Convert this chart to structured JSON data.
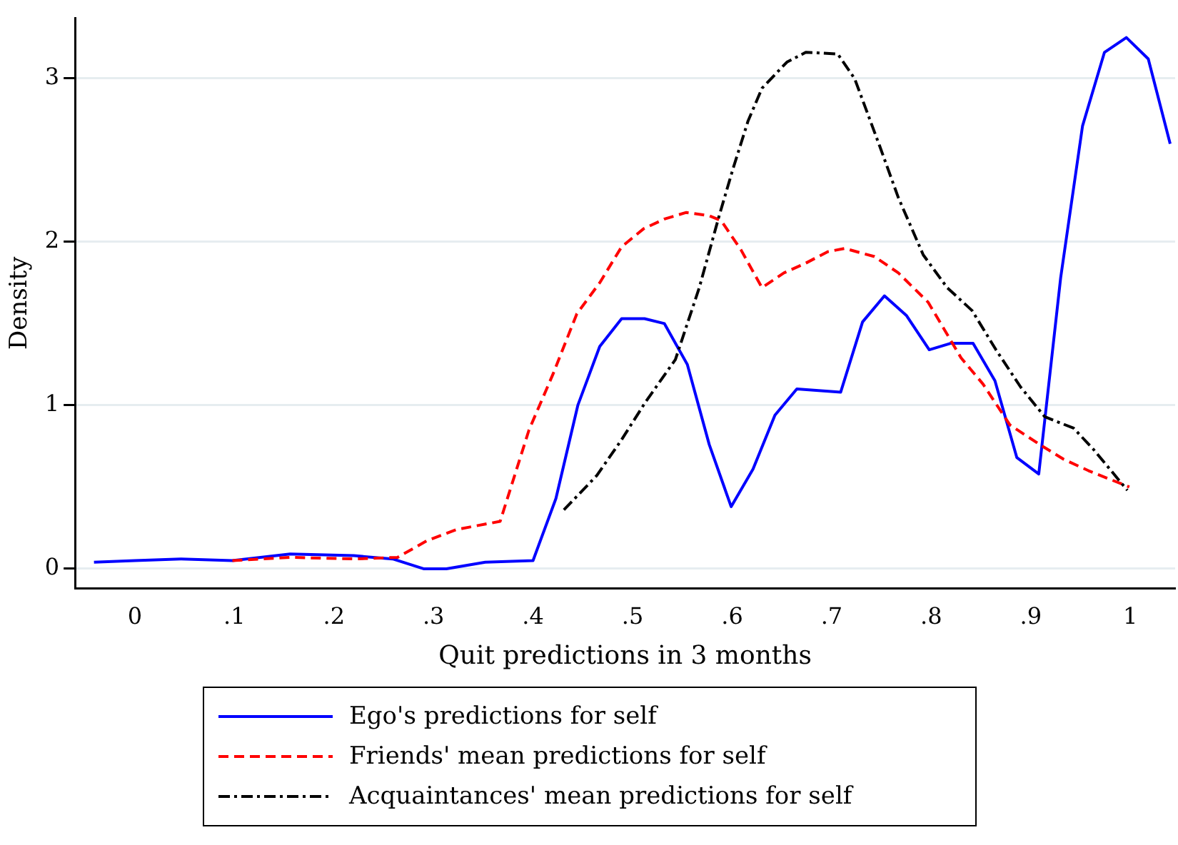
{
  "chart_data": {
    "type": "line",
    "xlabel": "Quit predictions in 3 months",
    "ylabel": "Density",
    "xlim": [
      -0.06,
      1.045
    ],
    "ylim": [
      -0.12,
      3.37
    ],
    "xticks": [
      0,
      {
        "value": 0.1,
        "label": ".1"
      },
      {
        "value": 0.2,
        "label": ".2"
      },
      {
        "value": 0.3,
        "label": ".3"
      },
      {
        "value": 0.4,
        "label": ".4"
      },
      {
        "value": 0.5,
        "label": ".5"
      },
      {
        "value": 0.6,
        "label": ".6"
      },
      {
        "value": 0.7,
        "label": ".7"
      },
      {
        "value": 0.8,
        "label": ".8"
      },
      {
        "value": 0.9,
        "label": ".9"
      },
      1
    ],
    "yticks": [
      0,
      1,
      2,
      3
    ],
    "grid": "y",
    "legend": "bottom",
    "marker": "none",
    "series": [
      {
        "name": "Ego's predictions for self",
        "color": "#0000ff",
        "line_style": "solid",
        "x": [
          -0.041,
          0,
          0.046,
          0.098,
          0.156,
          0.22,
          0.259,
          0.29,
          0.313,
          0.352,
          0.4,
          0.423,
          0.445,
          0.467,
          0.489,
          0.512,
          0.532,
          0.555,
          0.577,
          0.599,
          0.621,
          0.643,
          0.665,
          0.687,
          0.709,
          0.731,
          0.753,
          0.775,
          0.798,
          0.82,
          0.842,
          0.864,
          0.886,
          0.908,
          0.93,
          0.952,
          0.974,
          0.996,
          1.018,
          1.04
        ],
        "values": [
          0.04,
          0.05,
          0.06,
          0.05,
          0.09,
          0.08,
          0.06,
          0.0,
          0.0,
          0.04,
          0.05,
          0.43,
          1.0,
          1.36,
          1.53,
          1.53,
          1.5,
          1.25,
          0.76,
          0.38,
          0.61,
          0.94,
          1.1,
          1.09,
          1.08,
          1.51,
          1.67,
          1.55,
          1.34,
          1.38,
          1.38,
          1.15,
          0.68,
          0.58,
          1.78,
          2.71,
          3.16,
          3.25,
          3.12,
          2.6
        ]
      },
      {
        "name": "Friends' mean predictions for self",
        "color": "#ff0000",
        "line_style": "dashed",
        "x": [
          0.098,
          0.156,
          0.22,
          0.264,
          0.293,
          0.323,
          0.367,
          0.396,
          0.42,
          0.444,
          0.467,
          0.489,
          0.511,
          0.532,
          0.554,
          0.577,
          0.589,
          0.609,
          0.63,
          0.652,
          0.674,
          0.696,
          0.713,
          0.743,
          0.767,
          0.797,
          0.83,
          0.852,
          0.879,
          0.909,
          0.933,
          0.958,
          0.999
        ],
        "values": [
          0.05,
          0.07,
          0.06,
          0.07,
          0.17,
          0.24,
          0.29,
          0.85,
          1.19,
          1.56,
          1.75,
          1.97,
          2.08,
          2.14,
          2.18,
          2.16,
          2.13,
          1.95,
          1.72,
          1.81,
          1.87,
          1.94,
          1.96,
          1.91,
          1.81,
          1.63,
          1.29,
          1.13,
          0.88,
          0.76,
          0.67,
          0.6,
          0.5
        ]
      },
      {
        "name": "Acquaintances' mean predictions for self",
        "color": "#000000",
        "line_style": "dashdot",
        "x": [
          0.431,
          0.464,
          0.489,
          0.513,
          0.543,
          0.567,
          0.587,
          0.601,
          0.616,
          0.63,
          0.655,
          0.674,
          0.706,
          0.723,
          0.748,
          0.767,
          0.792,
          0.816,
          0.841,
          0.865,
          0.89,
          0.914,
          0.943,
          0.963,
          0.997
        ],
        "values": [
          0.36,
          0.57,
          0.79,
          1.02,
          1.28,
          1.72,
          2.16,
          2.45,
          2.74,
          2.94,
          3.1,
          3.16,
          3.15,
          3.0,
          2.59,
          2.27,
          1.92,
          1.72,
          1.58,
          1.34,
          1.11,
          0.93,
          0.86,
          0.73,
          0.48
        ]
      }
    ]
  }
}
